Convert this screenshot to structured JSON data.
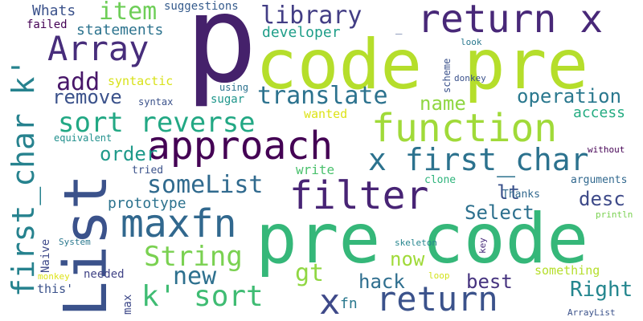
{
  "colors": {
    "background": "#ffffff",
    "dark_purple": "#45216b",
    "indigo": "#2e3e8c",
    "slate_blue": "#38598c",
    "teal_blue": "#2a788e",
    "teal": "#1f9a8a",
    "green": "#35b779",
    "light_green": "#6ece58",
    "lime": "#a0da39",
    "yellow_green": "#d0e11c",
    "black_purple": "#440154"
  },
  "words": [
    {
      "text": "p",
      "color": "#45216b"
    },
    {
      "text": "code pre",
      "color": "#b5de2b"
    },
    {
      "text": "pre code",
      "color": "#35b779"
    },
    {
      "text": "List",
      "color": "#3b528b"
    },
    {
      "text": "return x",
      "color": "#482878"
    },
    {
      "text": "function",
      "color": "#a0da39"
    },
    {
      "text": "approach",
      "color": "#440154"
    },
    {
      "text": "filter",
      "color": "#482475"
    },
    {
      "text": "maxfn",
      "color": "#31688e"
    },
    {
      "text": "Array",
      "color": "#472d7b"
    },
    {
      "text": "return",
      "color": "#3b528b"
    },
    {
      "text": "x",
      "color": "#3e4989"
    },
    {
      "text": "first_char k'",
      "color": "#26828e"
    },
    {
      "text": "x first_char",
      "color": "#2c728e"
    },
    {
      "text": "sort reverse",
      "color": "#22a884"
    },
    {
      "text": "k' sort",
      "color": "#3fbc73"
    },
    {
      "text": "String",
      "color": "#7ad151"
    },
    {
      "text": "someList",
      "color": "#306a8e"
    },
    {
      "text": "library",
      "color": "#433e85"
    },
    {
      "text": "translate",
      "color": "#2c728e"
    },
    {
      "text": "item",
      "color": "#6ece58"
    },
    {
      "text": "add",
      "color": "#481769"
    },
    {
      "text": "new",
      "color": "#2d708e"
    },
    {
      "text": "Right",
      "color": "#24868e"
    },
    {
      "text": "operation",
      "color": "#2a788e"
    },
    {
      "text": "remove",
      "color": "#3b528b"
    },
    {
      "text": "name",
      "color": "#90d743"
    },
    {
      "text": "order",
      "color": "#1f9a8a"
    },
    {
      "text": "now",
      "color": "#a0da39"
    },
    {
      "text": "hack",
      "color": "#2e6e8e"
    },
    {
      "text": "best",
      "color": "#46337f"
    },
    {
      "text": "lt",
      "color": "#3b528b"
    },
    {
      "text": "gt",
      "color": "#90d743"
    },
    {
      "text": "desc",
      "color": "#3e4a89"
    },
    {
      "text": "Select",
      "color": "#2d708e"
    },
    {
      "text": "access",
      "color": "#25ac82"
    },
    {
      "text": "statements",
      "color": "#2c738e"
    },
    {
      "text": "developer",
      "color": "#1f9e89"
    },
    {
      "text": "Whats",
      "color": "#3b528b"
    },
    {
      "text": "suggestions",
      "color": "#365c8d"
    },
    {
      "text": "failed",
      "color": "#440154"
    },
    {
      "text": "syntactic",
      "color": "#d8e219"
    },
    {
      "text": "wanted",
      "color": "#dde318"
    },
    {
      "text": "write",
      "color": "#4ac16d"
    },
    {
      "text": "prototype",
      "color": "#2c728e"
    },
    {
      "text": "sugar",
      "color": "#1f968b"
    },
    {
      "text": "using",
      "color": "#2c728e"
    },
    {
      "text": "syntax",
      "color": "#3b528b"
    },
    {
      "text": "equivalent",
      "color": "#21908d"
    },
    {
      "text": "tried",
      "color": "#3b528b"
    },
    {
      "text": "this'",
      "color": "#3b528b"
    },
    {
      "text": "needed",
      "color": "#414487"
    },
    {
      "text": "max",
      "color": "#3e4989"
    },
    {
      "text": "fn",
      "color": "#2a788e"
    },
    {
      "text": "Naive",
      "color": "#3e4989"
    },
    {
      "text": "System",
      "color": "#2a788e"
    },
    {
      "text": "monkey",
      "color": "#dde318"
    },
    {
      "text": "something",
      "color": "#b5de2b"
    },
    {
      "text": "Thanks",
      "color": "#31688e"
    },
    {
      "text": "arguments",
      "color": "#31688e"
    },
    {
      "text": "clone",
      "color": "#2fb47c"
    },
    {
      "text": "println",
      "color": "#7ad151"
    },
    {
      "text": "skeleton",
      "color": "#25858e"
    },
    {
      "text": "loop",
      "color": "#d2e21b"
    },
    {
      "text": "key",
      "color": "#472c7a"
    },
    {
      "text": "ArrayList",
      "color": "#3b528b"
    },
    {
      "text": "without",
      "color": "#440154"
    },
    {
      "text": "scheme",
      "color": "#3b528b"
    },
    {
      "text": "donkey",
      "color": "#3b528b"
    },
    {
      "text": "look",
      "color": "#2a788e"
    },
    {
      "text": "_",
      "color": "#3b528b"
    }
  ]
}
